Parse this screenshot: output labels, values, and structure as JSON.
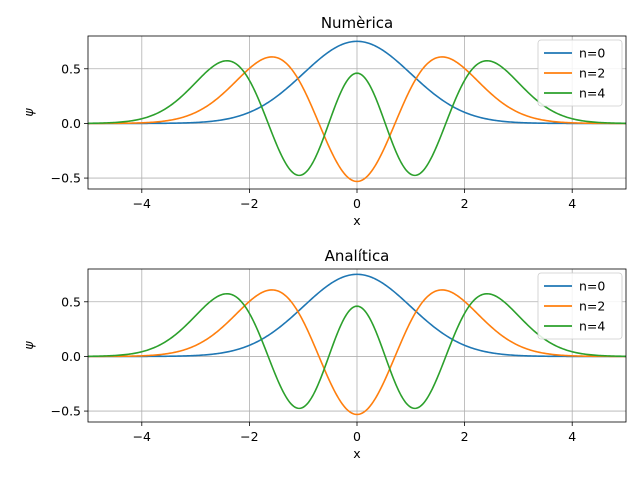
{
  "chart_data": [
    {
      "type": "line",
      "title": "Numèrica",
      "xlabel": "x",
      "ylabel": "ψ",
      "xlim": [
        -5,
        5
      ],
      "ylim": [
        -0.6,
        0.8
      ],
      "xticks": [
        -4,
        -2,
        0,
        2,
        4
      ],
      "xtick_labels": [
        "−4",
        "−2",
        "0",
        "2",
        "4"
      ],
      "yticks": [
        -0.5,
        0.0,
        0.5
      ],
      "ytick_labels": [
        "−0.5",
        "0.0",
        "0.5"
      ],
      "grid": true,
      "legend_position": "top-right",
      "series": [
        {
          "name": "n=0",
          "color": "#1f77b4",
          "function": "harmonic-oscillator-eigenstate",
          "n": 0
        },
        {
          "name": "n=2",
          "color": "#ff7f0e",
          "function": "harmonic-oscillator-eigenstate",
          "n": 2
        },
        {
          "name": "n=4",
          "color": "#2ca02c",
          "function": "harmonic-oscillator-eigenstate",
          "n": 4
        }
      ]
    },
    {
      "type": "line",
      "title": "Analítica",
      "xlabel": "x",
      "ylabel": "ψ",
      "xlim": [
        -5,
        5
      ],
      "ylim": [
        -0.6,
        0.8
      ],
      "xticks": [
        -4,
        -2,
        0,
        2,
        4
      ],
      "xtick_labels": [
        "−4",
        "−2",
        "0",
        "2",
        "4"
      ],
      "yticks": [
        -0.5,
        0.0,
        0.5
      ],
      "ytick_labels": [
        "−0.5",
        "0.0",
        "0.5"
      ],
      "grid": true,
      "legend_position": "top-right",
      "series": [
        {
          "name": "n=0",
          "color": "#1f77b4",
          "function": "harmonic-oscillator-eigenstate",
          "n": 0
        },
        {
          "name": "n=2",
          "color": "#ff7f0e",
          "function": "harmonic-oscillator-eigenstate",
          "n": 2
        },
        {
          "name": "n=4",
          "color": "#2ca02c",
          "function": "harmonic-oscillator-eigenstate",
          "n": 4
        }
      ]
    }
  ]
}
